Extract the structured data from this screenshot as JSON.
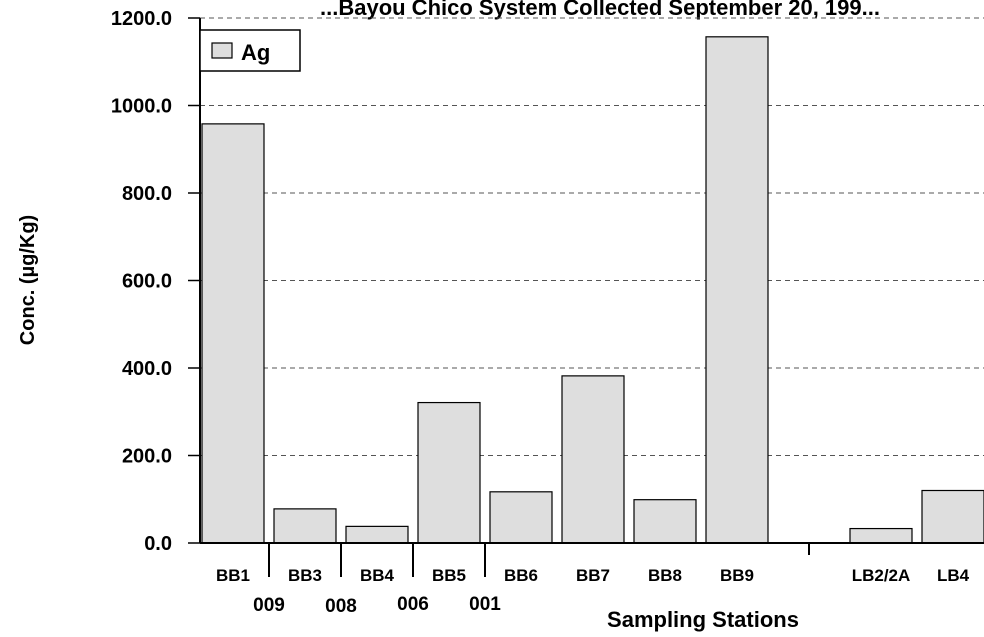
{
  "chart_data": {
    "type": "bar",
    "title": "...Bayou Chico System Collected September 20, 199...",
    "ylabel": "Conc. (µg/Kg)",
    "xlabel": "Sampling Stations",
    "ylim": [
      0,
      1200
    ],
    "yticks": [
      "0.0",
      "200.0",
      "400.0",
      "600.0",
      "800.0",
      "1000.0",
      "1200.0"
    ],
    "grid": "horizontal-dashed",
    "legend_position": "top-left",
    "series": [
      {
        "name": "Ag",
        "color": "#dedede",
        "values": [
          958,
          78,
          38,
          321,
          117,
          382,
          99,
          1157,
          null,
          33,
          120
        ]
      }
    ],
    "categories": [
      "BB1",
      "BB3",
      "BB4",
      "BB5",
      "BB6",
      "BB7",
      "BB8",
      "BB9",
      "",
      "LB2/2A",
      "LB4"
    ],
    "secondary_labels": [
      "009",
      "008",
      "006",
      "001"
    ]
  }
}
